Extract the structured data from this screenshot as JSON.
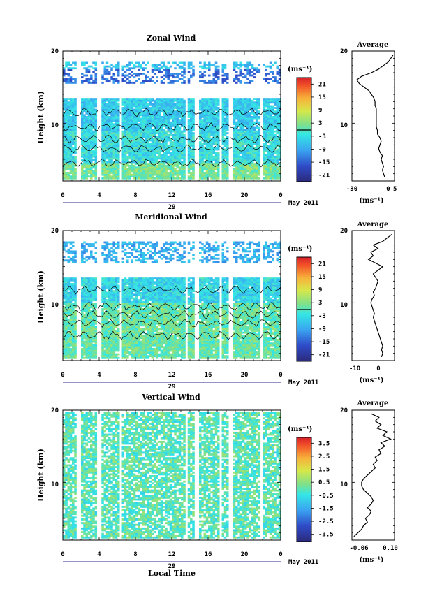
{
  "chart_data": [
    {
      "type": "heatmap",
      "title": "Zonal Wind",
      "ylabel": "Height (km)",
      "y_ticks": [
        "20",
        "10"
      ],
      "x_ticks": [
        "0",
        "4",
        "8",
        "12",
        "16",
        "20",
        "0"
      ],
      "date_label": "29",
      "month_label": "May 2011",
      "ylim": [
        2,
        20
      ],
      "xlim": [
        0,
        24
      ],
      "colorbar": {
        "unit": "(ms⁻¹)",
        "ticks": [
          "21",
          "15",
          "9",
          "3",
          "-3",
          "-9",
          "-15",
          "-21"
        ],
        "range": [
          -24,
          24
        ]
      },
      "contour_level": 0,
      "data_extent": {
        "min_height": 2.3,
        "max_height": 18.5
      },
      "average": {
        "title": "Average",
        "xlabel": "(ms⁻¹)",
        "x_ticks": [
          "-30",
          "0",
          "5"
        ],
        "y_ticks": [
          "20",
          "10"
        ],
        "xlim": [
          -30,
          5
        ],
        "ylim": [
          2,
          20
        ],
        "height": [
          2.5,
          3,
          3.5,
          4,
          4.5,
          5,
          5.5,
          6,
          6.5,
          7,
          7.5,
          8,
          8.5,
          9,
          9.5,
          10,
          10.5,
          11,
          11.5,
          12,
          12.5,
          13,
          13.5,
          14,
          14.5,
          15,
          15.5,
          16,
          16.5,
          17,
          17.5,
          18,
          18.5,
          19,
          19.5
        ],
        "wind": [
          -3,
          -4,
          -5,
          -4,
          -5,
          -6,
          -5,
          -7,
          -8,
          -7,
          -6,
          -7,
          -9,
          -9,
          -10,
          -10,
          -10,
          -10,
          -10,
          -10,
          -11,
          -11,
          -12,
          -14,
          -16,
          -20,
          -24,
          -26,
          -22,
          -14,
          -8,
          -4,
          0,
          2,
          4
        ]
      }
    },
    {
      "type": "heatmap",
      "title": "Meridional Wind",
      "ylabel": "Height (km)",
      "y_ticks": [
        "20",
        "10"
      ],
      "x_ticks": [
        "0",
        "4",
        "8",
        "12",
        "16",
        "20",
        "0"
      ],
      "date_label": "29",
      "month_label": "May 2011",
      "ylim": [
        2,
        20
      ],
      "xlim": [
        0,
        24
      ],
      "colorbar": {
        "unit": "(ms⁻¹)",
        "ticks": [
          "21",
          "15",
          "9",
          "3",
          "-3",
          "-9",
          "-15",
          "-21"
        ],
        "range": [
          -24,
          24
        ]
      },
      "contour_level": 0,
      "data_extent": {
        "min_height": 2.3,
        "max_height": 18.5
      },
      "average": {
        "title": "Average",
        "xlabel": "(ms⁻¹)",
        "x_ticks": [
          "-10",
          "0"
        ],
        "y_ticks": [
          "20",
          "10"
        ],
        "xlim": [
          -12,
          6
        ],
        "ylim": [
          2,
          20
        ],
        "height": [
          2.5,
          3,
          3.5,
          4,
          4.5,
          5,
          5.5,
          6,
          6.5,
          7,
          7.5,
          8,
          8.5,
          9,
          9.5,
          10,
          10.5,
          11,
          11.5,
          12,
          12.5,
          13,
          13.5,
          14,
          14.5,
          15,
          15.5,
          16,
          16.5,
          17,
          17.5,
          18,
          18.5,
          19,
          19.5
        ],
        "wind": [
          0.5,
          1,
          0.5,
          1,
          0.5,
          0,
          -0.5,
          -1,
          -1.5,
          -2,
          -2.5,
          -3,
          -2.5,
          -3,
          -3.5,
          -4,
          -3.5,
          -2.5,
          -3,
          -2,
          -1.5,
          -1,
          -2,
          -3,
          -1,
          1,
          -2,
          -5,
          -3,
          -4,
          -1,
          -3,
          1,
          3,
          5
        ]
      }
    },
    {
      "type": "heatmap",
      "title": "Vertical Wind",
      "ylabel": "Height (km)",
      "xlabel": "Local Time",
      "y_ticks": [
        "20",
        "10"
      ],
      "x_ticks": [
        "0",
        "4",
        "8",
        "12",
        "16",
        "20",
        "0"
      ],
      "date_label": "29",
      "month_label": "May 2011",
      "ylim": [
        2,
        20
      ],
      "xlim": [
        0,
        24
      ],
      "colorbar": {
        "unit": "(ms⁻¹)",
        "ticks": [
          "3.5",
          "2.5",
          "1.5",
          "0.5",
          "-0.5",
          "-1.5",
          "-2.5",
          "-3.5"
        ],
        "range": [
          -4,
          4
        ]
      },
      "data_extent": {
        "min_height": 2.3,
        "max_height": 19.8
      },
      "average": {
        "title": "Average",
        "xlabel": "(ms⁻¹)",
        "x_ticks": [
          "-0.06",
          "0.10"
        ],
        "y_ticks": [
          "20",
          "10"
        ],
        "xlim": [
          -0.1,
          0.12
        ],
        "ylim": [
          2,
          20
        ],
        "height": [
          2.5,
          3,
          3.5,
          4,
          4.5,
          5,
          5.5,
          6,
          6.5,
          7,
          7.5,
          8,
          8.5,
          9,
          9.5,
          10,
          10.5,
          11,
          11.5,
          12,
          12.5,
          13,
          13.5,
          14,
          14.5,
          15,
          15.5,
          16,
          16.5,
          17,
          17.5,
          18,
          18.5,
          19,
          19.5
        ],
        "wind": [
          -0.09,
          -0.07,
          -0.05,
          -0.04,
          -0.02,
          -0.03,
          -0.01,
          0.0,
          -0.02,
          0.0,
          0.01,
          0.0,
          -0.02,
          -0.04,
          -0.05,
          -0.05,
          -0.04,
          -0.02,
          0.0,
          0.02,
          0.01,
          0.03,
          0.02,
          0.05,
          0.04,
          0.07,
          0.05,
          0.1,
          0.06,
          0.08,
          0.03,
          0.05,
          0.02,
          0.04,
          0.0
        ]
      }
    }
  ]
}
